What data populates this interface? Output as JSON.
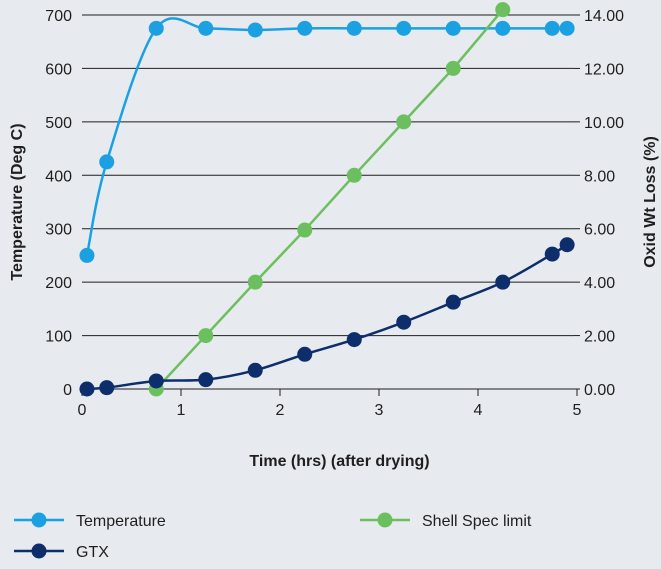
{
  "chart_data": {
    "type": "line",
    "title": "",
    "xlabel": "Time (hrs) (after drying)",
    "ylabel": "Temperature (Deg C)",
    "y2label": "Oxid Wt Loss (%)",
    "xlim": [
      0,
      5
    ],
    "ylim": [
      0,
      700
    ],
    "y2lim": [
      0,
      14
    ],
    "x_ticks": [
      "0",
      "1",
      "2",
      "3",
      "4",
      "5"
    ],
    "y_ticks": [
      "0",
      "100",
      "200",
      "300",
      "400",
      "500",
      "600",
      "700"
    ],
    "y2_ticks": [
      "0.00",
      "2.00",
      "4.00",
      "6.00",
      "8.00",
      "10.00",
      "12.00",
      "14.00"
    ],
    "grid": "horizontal",
    "legend": "bottom",
    "series": [
      {
        "name": "Temperature",
        "axis": "left",
        "color": "#1ba1e2",
        "smooth": true,
        "points": [
          [
            0.05,
            250
          ],
          [
            0.25,
            425
          ],
          [
            0.75,
            675
          ],
          [
            1.25,
            675
          ],
          [
            1.75,
            672
          ],
          [
            2.25,
            675
          ],
          [
            2.75,
            675
          ],
          [
            3.25,
            675
          ],
          [
            3.75,
            675
          ],
          [
            4.25,
            675
          ],
          [
            4.75,
            675
          ],
          [
            4.9,
            675
          ]
        ]
      },
      {
        "name": "Shell Spec limit",
        "axis": "right",
        "color": "#6cbf5f",
        "smooth": false,
        "points": [
          [
            0.75,
            0
          ],
          [
            1.25,
            2
          ],
          [
            1.75,
            4
          ],
          [
            2.25,
            5.95
          ],
          [
            2.75,
            8
          ],
          [
            3.25,
            10
          ],
          [
            3.75,
            12
          ],
          [
            4.25,
            14.2
          ]
        ]
      },
      {
        "name": "GTX",
        "axis": "right",
        "color": "#0d2e6b",
        "smooth": true,
        "points": [
          [
            0.05,
            0
          ],
          [
            0.25,
            0.05
          ],
          [
            0.75,
            0.3
          ],
          [
            1.25,
            0.35
          ],
          [
            1.75,
            0.7
          ],
          [
            2.25,
            1.3
          ],
          [
            2.75,
            1.85
          ],
          [
            3.25,
            2.5
          ],
          [
            3.75,
            3.25
          ],
          [
            4.25,
            4
          ],
          [
            4.75,
            5.05
          ],
          [
            4.9,
            5.4
          ]
        ]
      }
    ]
  }
}
